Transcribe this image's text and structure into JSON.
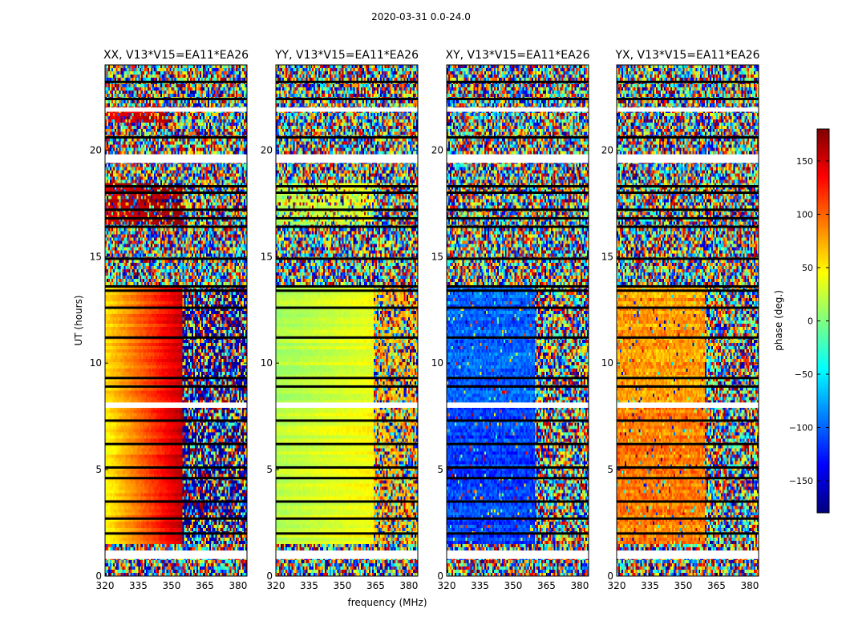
{
  "figure": {
    "suptitle": "2020-03-31 0.0-24.0"
  },
  "chart_data": {
    "type": "heatmap",
    "xlabel": "frequency (MHz)",
    "ylabel": "UT (hours)",
    "xlim": [
      320,
      384
    ],
    "ylim": [
      0,
      24
    ],
    "xticks": [
      320,
      335,
      350,
      365,
      380
    ],
    "yticks": [
      0,
      5,
      10,
      15,
      20
    ],
    "colorbar": {
      "label": "phase (deg.)",
      "range": [
        -180,
        180
      ],
      "ticks": [
        150,
        100,
        50,
        0,
        -50,
        -100,
        -150
      ],
      "tick_labels": [
        "150",
        "100",
        "50",
        "0",
        "−50",
        "−100",
        "−150"
      ],
      "colormap": "jet",
      "colors": [
        "#00007f",
        "#0000ff",
        "#007fff",
        "#00ffff",
        "#7fff7f",
        "#ffff00",
        "#ff7f00",
        "#ff0000",
        "#7f0000"
      ]
    },
    "blank_time_bands_hours": [
      [
        0.8,
        1.2
      ],
      [
        7.9,
        8.15
      ],
      [
        19.4,
        19.8
      ],
      [
        21.8,
        22.0
      ]
    ],
    "flagged_time_rows_hours": [
      2.0,
      2.7,
      3.5,
      4.6,
      5.1,
      6.2,
      7.3,
      8.9,
      9.3,
      11.2,
      12.6,
      13.4,
      13.6,
      14.9,
      16.4,
      16.8,
      17.2,
      18.0,
      18.3,
      20.6,
      22.4,
      23.2
    ],
    "panels": [
      {
        "title": "XX, V13*V15=EA11*EA26",
        "bands": [
          {
            "t0": 0,
            "t1": 1.5,
            "mode": "noise"
          },
          {
            "t0": 1.5,
            "t1": 7.9,
            "mode": "smooth",
            "phase_low": 45,
            "phase_high": 160,
            "noise_after_mhz": 355,
            "post_phase": -170
          },
          {
            "t0": 7.9,
            "t1": 13.6,
            "mode": "smooth",
            "phase_low": 55,
            "phase_high": 155,
            "noise_after_mhz": 355,
            "post_phase": -170
          },
          {
            "t0": 13.6,
            "t1": 16.5,
            "mode": "noise"
          },
          {
            "t0": 16.5,
            "t1": 18.5,
            "mode": "mixed",
            "phase_low": 150,
            "phase_high": 175,
            "noise_after_mhz": 355
          },
          {
            "t0": 18.5,
            "t1": 21.3,
            "mode": "noise"
          },
          {
            "t0": 21.3,
            "t1": 22.0,
            "mode": "mixed",
            "phase_low": 130,
            "phase_high": 165,
            "noise_after_mhz": 350
          },
          {
            "t0": 22.0,
            "t1": 24,
            "mode": "noise"
          }
        ]
      },
      {
        "title": "YY, V13*V15=EA11*EA26",
        "bands": [
          {
            "t0": 0,
            "t1": 1.5,
            "mode": "noise"
          },
          {
            "t0": 1.5,
            "t1": 7.9,
            "mode": "smooth",
            "phase_low": 20,
            "phase_high": 45,
            "noise_after_mhz": 364,
            "post_phase": 70
          },
          {
            "t0": 7.9,
            "t1": 13.6,
            "mode": "smooth",
            "phase_low": 15,
            "phase_high": 40,
            "noise_after_mhz": 364,
            "post_phase": 70
          },
          {
            "t0": 13.6,
            "t1": 16.5,
            "mode": "noise"
          },
          {
            "t0": 16.5,
            "t1": 18.5,
            "mode": "mixed",
            "phase_low": 20,
            "phase_high": 40,
            "noise_after_mhz": 364
          },
          {
            "t0": 18.5,
            "t1": 24,
            "mode": "noise"
          }
        ]
      },
      {
        "title": "XY, V13*V15=EA11*EA26",
        "bands": [
          {
            "t0": 0,
            "t1": 1.5,
            "mode": "noise"
          },
          {
            "t0": 1.5,
            "t1": 7.9,
            "mode": "speckle",
            "phase_low": -130,
            "phase_high": -90,
            "noise_after_mhz": 360
          },
          {
            "t0": 7.9,
            "t1": 13.6,
            "mode": "speckle",
            "phase_low": -120,
            "phase_high": -80,
            "noise_after_mhz": 360
          },
          {
            "t0": 13.6,
            "t1": 24,
            "mode": "noise"
          }
        ]
      },
      {
        "title": "YX, V13*V15=EA11*EA26",
        "bands": [
          {
            "t0": 0,
            "t1": 1.5,
            "mode": "noise"
          },
          {
            "t0": 1.5,
            "t1": 7.9,
            "mode": "speckle",
            "phase_low": 70,
            "phase_high": 110,
            "noise_after_mhz": 360
          },
          {
            "t0": 7.9,
            "t1": 13.6,
            "mode": "speckle",
            "phase_low": 60,
            "phase_high": 100,
            "noise_after_mhz": 360
          },
          {
            "t0": 13.6,
            "t1": 24,
            "mode": "noise"
          }
        ]
      }
    ]
  }
}
